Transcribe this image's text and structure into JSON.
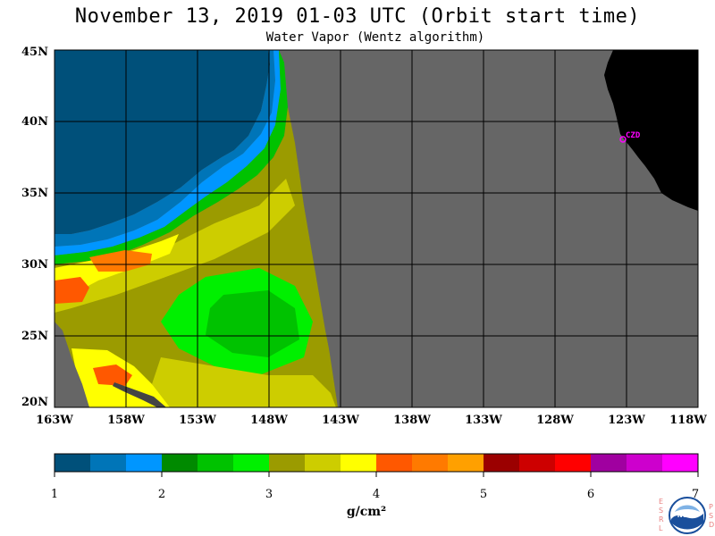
{
  "header": {
    "title": "November 13, 2019  01-03 UTC  (Orbit start time)",
    "subtitle": "Water Vapor (Wentz algorithm)"
  },
  "axes": {
    "y_labels": [
      "45N",
      "40N",
      "35N",
      "30N",
      "25N",
      "20N"
    ],
    "x_labels": [
      "163W",
      "158W",
      "153W",
      "148W",
      "143W",
      "138W",
      "133W",
      "128W",
      "123W",
      "118W"
    ]
  },
  "station": {
    "label": "CZD",
    "color": "#ff00ff"
  },
  "colorbar": {
    "ticks": [
      "1",
      "2",
      "3",
      "4",
      "5",
      "6",
      "7"
    ],
    "units": "g/cm²",
    "colors": [
      "#00507a",
      "#0075b8",
      "#0096ff",
      "#008a00",
      "#00c200",
      "#00f000",
      "#9b9b00",
      "#cdcd00",
      "#ffff00",
      "#ff5800",
      "#ff7a00",
      "#ffa000",
      "#9b0000",
      "#cd0000",
      "#ff0000",
      "#a000a0",
      "#cd00cd",
      "#ff00ff"
    ]
  },
  "legend_colors": {
    "land": "#000000",
    "no_data": "#666666"
  },
  "logo": {
    "letters_left": [
      "E",
      "S",
      "R",
      "L"
    ],
    "letters_right": [
      "P",
      "S",
      "D"
    ],
    "name": "NOAA"
  }
}
